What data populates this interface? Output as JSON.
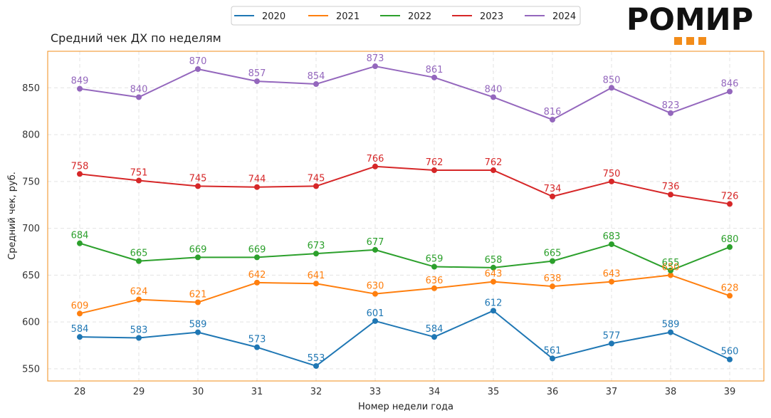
{
  "brand": {
    "logo_text": "РОМИР"
  },
  "colors": {
    "frame": "#f28c1a",
    "grid": "#e3e3e3",
    "logo_accent": "#f28c1a"
  },
  "chart_data": {
    "type": "line",
    "title": "Средний чек ДХ по неделям",
    "xlabel": "Номер недели года",
    "ylabel": "Средний чек, руб.",
    "x": [
      28,
      29,
      30,
      31,
      32,
      33,
      34,
      35,
      36,
      37,
      38,
      39
    ],
    "ylim": [
      537,
      889
    ],
    "yticks": [
      550,
      600,
      650,
      700,
      750,
      800,
      850
    ],
    "grid": true,
    "legend_position": "top-center",
    "series": [
      {
        "name": "2020",
        "color": "#1f77b4",
        "values": [
          584,
          583,
          589,
          573,
          553,
          601,
          584,
          612,
          561,
          577,
          589,
          560
        ]
      },
      {
        "name": "2021",
        "color": "#ff7f0e",
        "values": [
          609,
          624,
          621,
          642,
          641,
          630,
          636,
          643,
          638,
          643,
          650,
          628
        ]
      },
      {
        "name": "2022",
        "color": "#2ca02c",
        "values": [
          684,
          665,
          669,
          669,
          673,
          677,
          659,
          658,
          665,
          683,
          655,
          680
        ]
      },
      {
        "name": "2023",
        "color": "#d62728",
        "values": [
          758,
          751,
          745,
          744,
          745,
          766,
          762,
          762,
          734,
          750,
          736,
          726
        ]
      },
      {
        "name": "2024",
        "color": "#9467bd",
        "values": [
          849,
          840,
          870,
          857,
          854,
          873,
          861,
          840,
          816,
          850,
          823,
          846
        ]
      }
    ]
  }
}
